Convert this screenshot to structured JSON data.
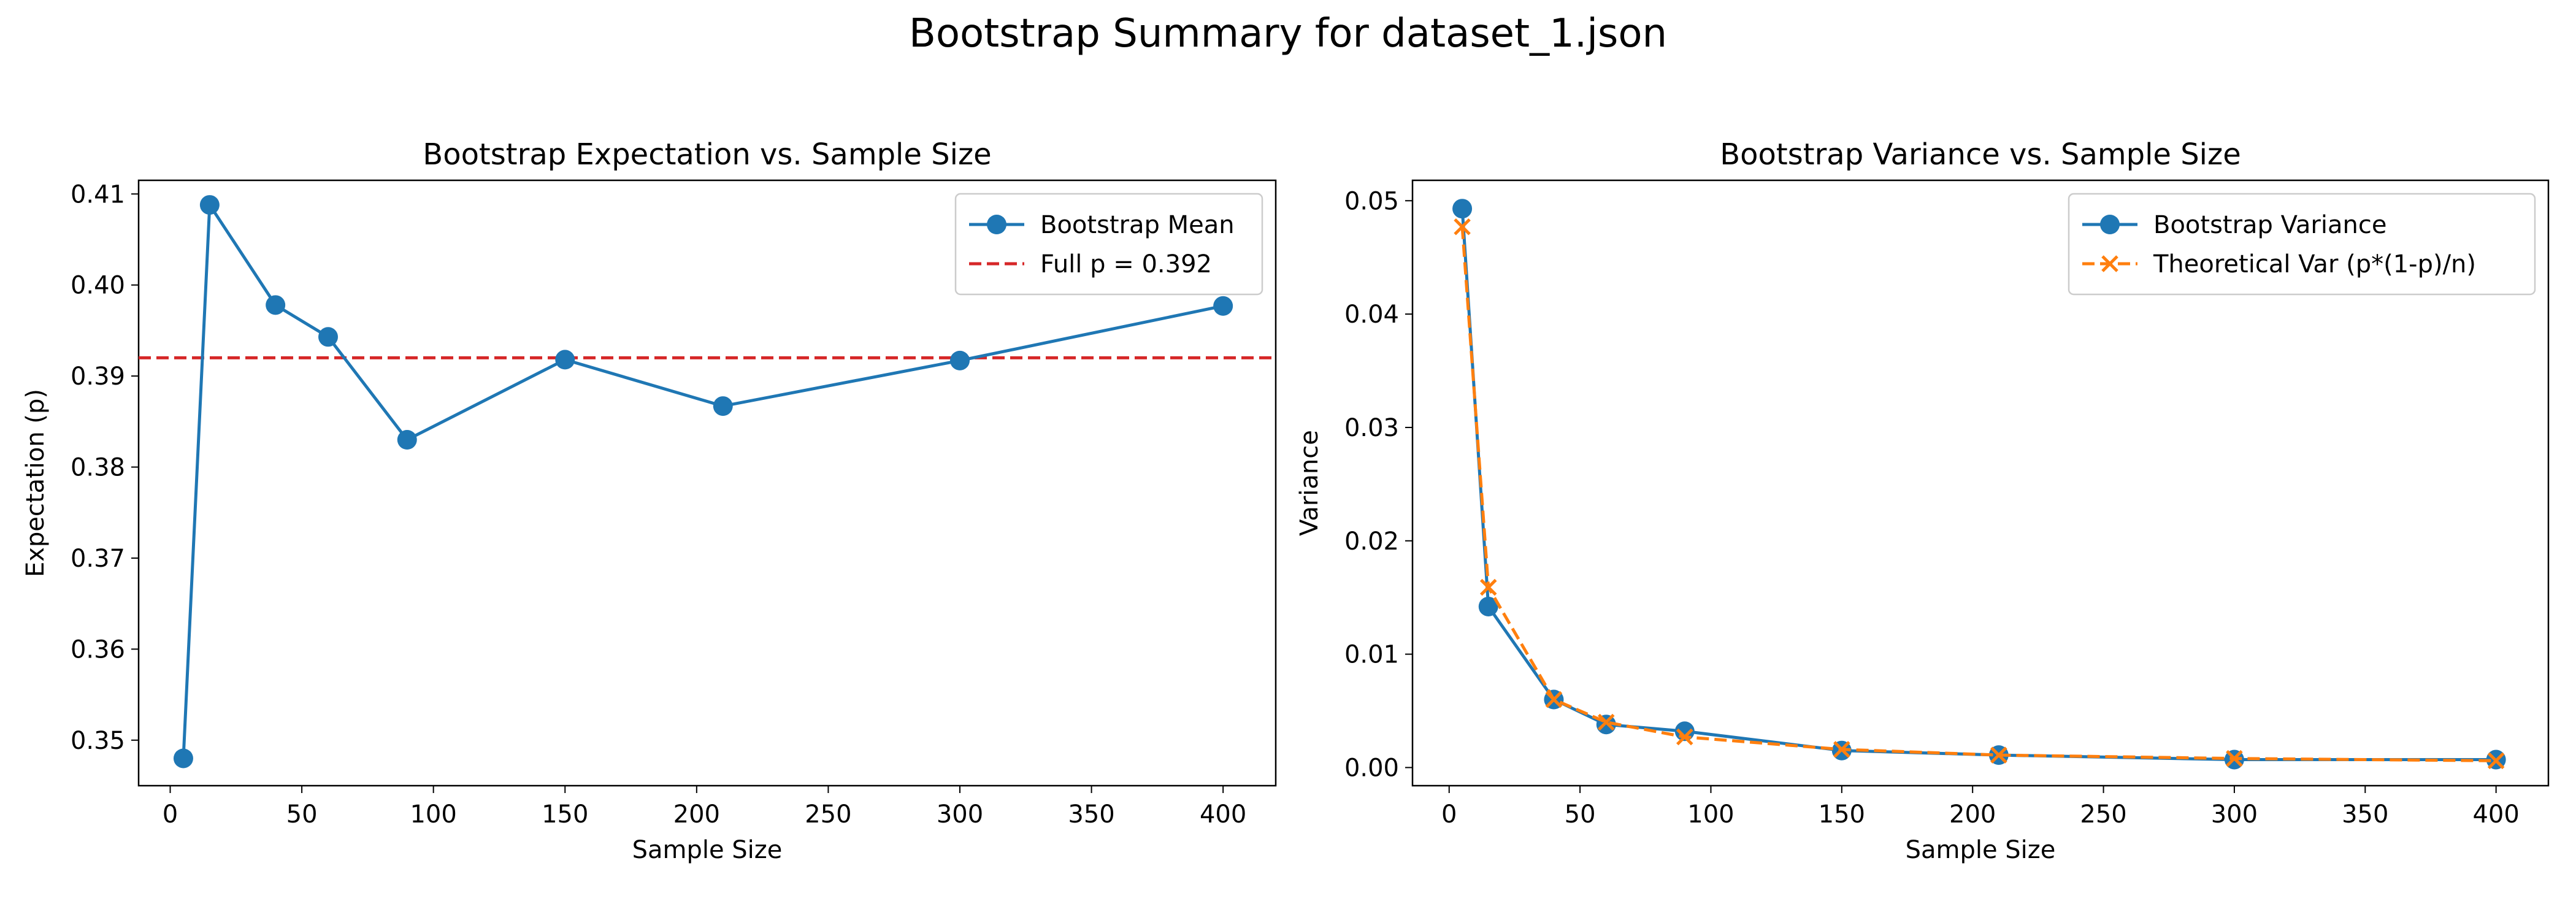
{
  "suptitle": "Bootstrap Summary for dataset_1.json",
  "colors": {
    "blue": "#1f77b4",
    "orange": "#ff7f0e",
    "red": "#d62728"
  },
  "chart_data": [
    {
      "type": "line",
      "title": "Bootstrap Expectation vs. Sample Size",
      "xlabel": "Sample Size",
      "ylabel": "Expectation (p)",
      "xlim": [
        -12,
        420
      ],
      "ylim": [
        0.345,
        0.4115
      ],
      "xticks": [
        0,
        50,
        100,
        150,
        200,
        250,
        300,
        350,
        400
      ],
      "yticks": [
        0.35,
        0.36,
        0.37,
        0.38,
        0.39,
        0.4,
        0.41
      ],
      "ytick_labels": [
        "0.35",
        "0.36",
        "0.37",
        "0.38",
        "0.39",
        "0.40",
        "0.41"
      ],
      "legend_position": "upper right",
      "series": [
        {
          "name": "Bootstrap Mean",
          "style": "solid-circle",
          "color": "#1f77b4",
          "x": [
            5,
            15,
            40,
            60,
            90,
            150,
            210,
            300,
            400
          ],
          "y": [
            0.348,
            0.4088,
            0.3978,
            0.3943,
            0.383,
            0.3918,
            0.3867,
            0.3917,
            0.3977
          ]
        }
      ],
      "hlines": [
        {
          "name": "Full p = 0.392",
          "y": 0.392,
          "color": "#d62728",
          "style": "dashed"
        }
      ]
    },
    {
      "type": "line",
      "title": "Bootstrap Variance vs. Sample Size",
      "xlabel": "Sample Size",
      "ylabel": "Variance",
      "xlim": [
        -14,
        420
      ],
      "ylim": [
        -0.0016,
        0.0518
      ],
      "xticks": [
        0,
        50,
        100,
        150,
        200,
        250,
        300,
        350,
        400
      ],
      "yticks": [
        0.0,
        0.01,
        0.02,
        0.03,
        0.04,
        0.05
      ],
      "ytick_labels": [
        "0.00",
        "0.01",
        "0.02",
        "0.03",
        "0.04",
        "0.05"
      ],
      "legend_position": "upper right",
      "series": [
        {
          "name": "Bootstrap Variance",
          "style": "solid-circle",
          "color": "#1f77b4",
          "x": [
            5,
            15,
            40,
            60,
            90,
            150,
            210,
            300,
            400
          ],
          "y": [
            0.0493,
            0.0142,
            0.006,
            0.0038,
            0.0032,
            0.0015,
            0.0011,
            0.0007,
            0.0007
          ]
        },
        {
          "name": "Theoretical Var (p*(1-p)/n)",
          "style": "dashed-x",
          "color": "#ff7f0e",
          "x": [
            5,
            15,
            40,
            60,
            90,
            150,
            210,
            300,
            400
          ],
          "y": [
            0.0477,
            0.0159,
            0.006,
            0.004,
            0.0027,
            0.0016,
            0.0011,
            0.0008,
            0.0006
          ]
        }
      ]
    }
  ]
}
